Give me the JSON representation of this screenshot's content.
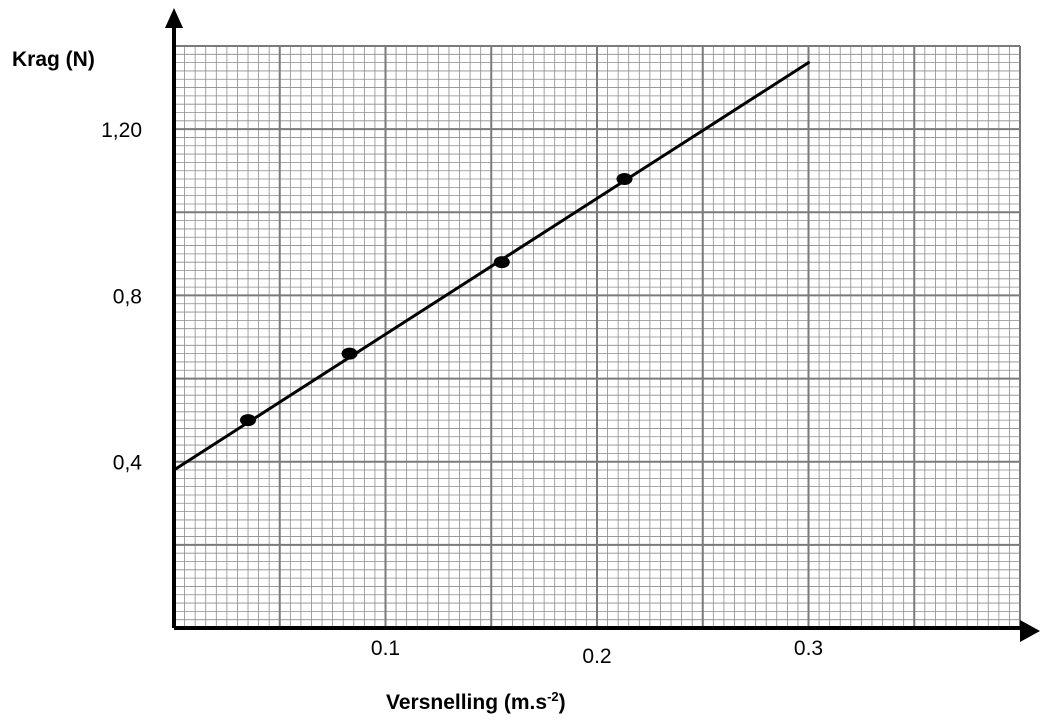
{
  "chart_data": {
    "type": "scatter",
    "title": "",
    "xlabel": "Versnelling (m.s",
    "xlabel_superscript": "-2",
    "xlabel_suffix": ")",
    "ylabel": "Krag (N)",
    "xlim": [
      0,
      0.4
    ],
    "ylim": [
      0,
      1.4
    ],
    "x_ticks": [
      {
        "value": 0.1,
        "label": "0.1"
      },
      {
        "value": 0.2,
        "label": "0.2"
      },
      {
        "value": 0.3,
        "label": "0.3"
      }
    ],
    "y_ticks": [
      {
        "value": 0.4,
        "label": "0,4"
      },
      {
        "value": 0.8,
        "label": "0,8"
      },
      {
        "value": 1.2,
        "label": "1,20"
      }
    ],
    "grid": true,
    "points": [
      {
        "x": 0.035,
        "y": 0.5
      },
      {
        "x": 0.083,
        "y": 0.66
      },
      {
        "x": 0.155,
        "y": 0.88
      },
      {
        "x": 0.213,
        "y": 1.08
      }
    ],
    "fit_line": {
      "x": [
        0,
        0.3
      ],
      "y": [
        0.38,
        1.36
      ]
    },
    "colors": {
      "ink": "#000000",
      "grid_major": "#7a7a7a",
      "grid_minor": "#8c8c8c",
      "background": "#ffffff"
    }
  }
}
